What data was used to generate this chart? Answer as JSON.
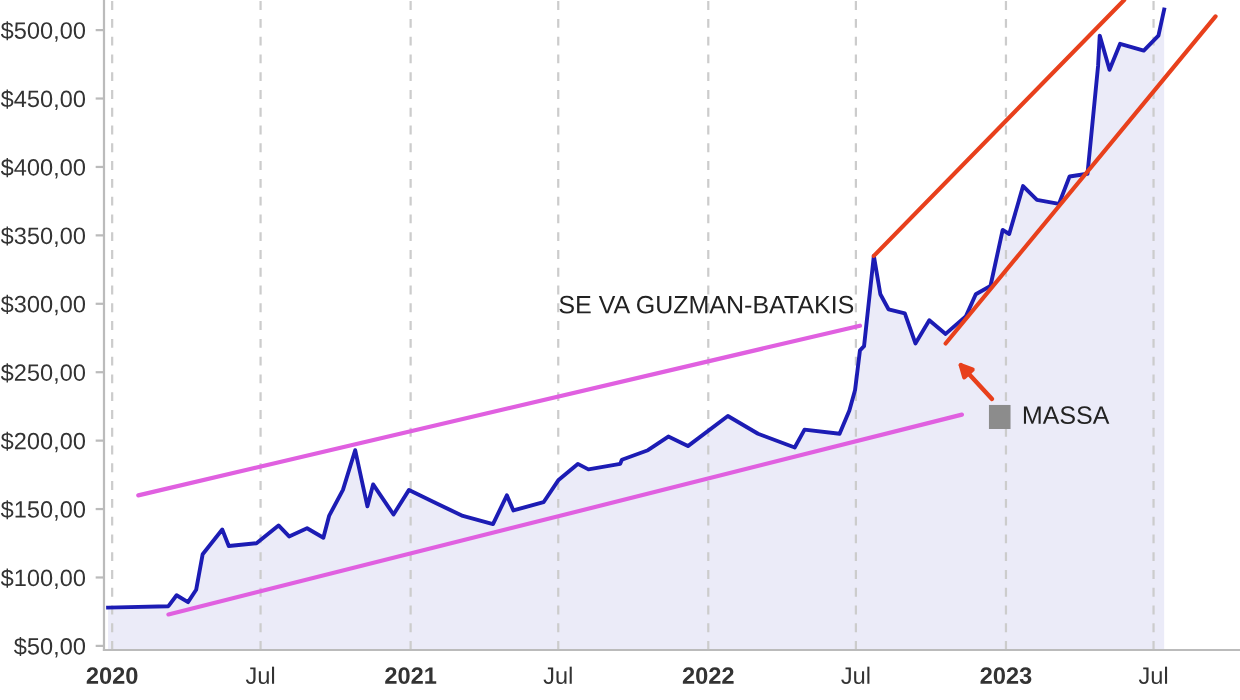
{
  "chart_data": {
    "type": "area",
    "xlim": [
      "2019-12-22",
      "2023-10-15"
    ],
    "ylim": [
      47,
      522
    ],
    "xticks": [
      {
        "value": "2020-01-01",
        "label": "2020"
      },
      {
        "value": "2020-07-01",
        "label": "Jul"
      },
      {
        "value": "2021-01-01",
        "label": "2021"
      },
      {
        "value": "2021-07-01",
        "label": "Jul"
      },
      {
        "value": "2022-01-01",
        "label": "2022"
      },
      {
        "value": "2022-07-01",
        "label": "Jul"
      },
      {
        "value": "2023-01-01",
        "label": "2023"
      },
      {
        "value": "2023-07-01",
        "label": "Jul"
      }
    ],
    "yticks": [
      {
        "value": 50,
        "label": "$50,00"
      },
      {
        "value": 100,
        "label": "$100,00"
      },
      {
        "value": 150,
        "label": "$150,00"
      },
      {
        "value": 200,
        "label": "$200,00"
      },
      {
        "value": 250,
        "label": "$250,00"
      },
      {
        "value": 300,
        "label": "$300,00"
      },
      {
        "value": 350,
        "label": "$350,00"
      },
      {
        "value": 400,
        "label": "$400,00"
      },
      {
        "value": 450,
        "label": "$450,00"
      },
      {
        "value": 500,
        "label": "$500,00"
      }
    ],
    "grid": "x",
    "annotations": [
      "SE VA GUZMAN-BATAKIS",
      "MASSA"
    ],
    "series": [
      {
        "color": "#1c1cb4",
        "x": [
          "2019-12-27",
          "2020-03-10",
          "2020-03-20",
          "2020-04-03",
          "2020-04-13",
          "2020-04-21",
          "2020-05-15",
          "2020-05-23",
          "2020-06-26",
          "2020-07-23",
          "2020-08-05",
          "2020-08-27",
          "2020-09-16",
          "2020-09-23",
          "2020-10-10",
          "2020-10-25",
          "2020-11-09",
          "2020-11-16",
          "2020-12-11",
          "2020-12-30",
          "2021-02-02",
          "2021-03-06",
          "2021-04-12",
          "2021-04-29",
          "2021-05-07",
          "2021-06-13",
          "2021-07-01",
          "2021-07-25",
          "2021-08-07",
          "2021-09-15",
          "2021-09-17",
          "2021-10-19",
          "2021-11-13",
          "2021-12-07",
          "2022-01-25",
          "2022-03-03",
          "2022-04-17",
          "2022-04-29",
          "2022-06-11",
          "2022-06-23",
          "2022-06-30",
          "2022-07-06",
          "2022-07-11",
          "2022-07-23",
          "2022-07-31",
          "2022-08-10",
          "2022-08-30",
          "2022-09-12",
          "2022-09-29",
          "2022-10-19",
          "2022-11-13",
          "2022-11-25",
          "2022-12-13",
          "2022-12-28",
          "2023-01-05",
          "2023-01-22",
          "2023-02-08",
          "2023-03-07",
          "2023-03-20",
          "2023-04-11",
          "2023-04-24",
          "2023-04-26",
          "2023-05-08",
          "2023-05-21",
          "2023-06-19",
          "2023-07-07",
          "2023-07-14"
        ],
        "values": [
          78,
          79,
          87,
          82,
          91,
          117,
          135,
          123,
          125,
          138,
          130,
          136,
          129,
          145,
          164,
          193,
          152,
          168,
          146,
          164,
          154,
          145,
          139,
          160,
          149,
          155,
          171,
          183,
          179,
          183,
          186,
          193,
          203,
          196,
          218,
          205,
          195,
          208,
          205,
          222,
          237,
          266,
          269,
          335,
          307,
          296,
          293,
          271,
          288,
          278,
          291,
          307,
          313,
          354,
          351,
          386,
          376,
          373,
          393,
          395,
          474,
          496,
          471,
          490,
          485,
          496,
          515
        ]
      },
      {
        "type": "line",
        "color": "#e060e0",
        "x": [
          "2020-02-02",
          "2022-07-06"
        ],
        "values": [
          160,
          284
        ]
      },
      {
        "type": "line",
        "color": "#e060e0",
        "x": [
          "2020-03-10",
          "2022-11-08"
        ],
        "values": [
          73,
          219
        ]
      },
      {
        "type": "line",
        "color": "#e8401c",
        "x": [
          "2022-07-23",
          "2023-05-26"
        ],
        "values": [
          335,
          522
        ]
      },
      {
        "type": "line",
        "color": "#e8401c",
        "x": [
          "2022-10-19",
          "2023-09-15"
        ],
        "values": [
          271,
          510
        ]
      }
    ]
  }
}
